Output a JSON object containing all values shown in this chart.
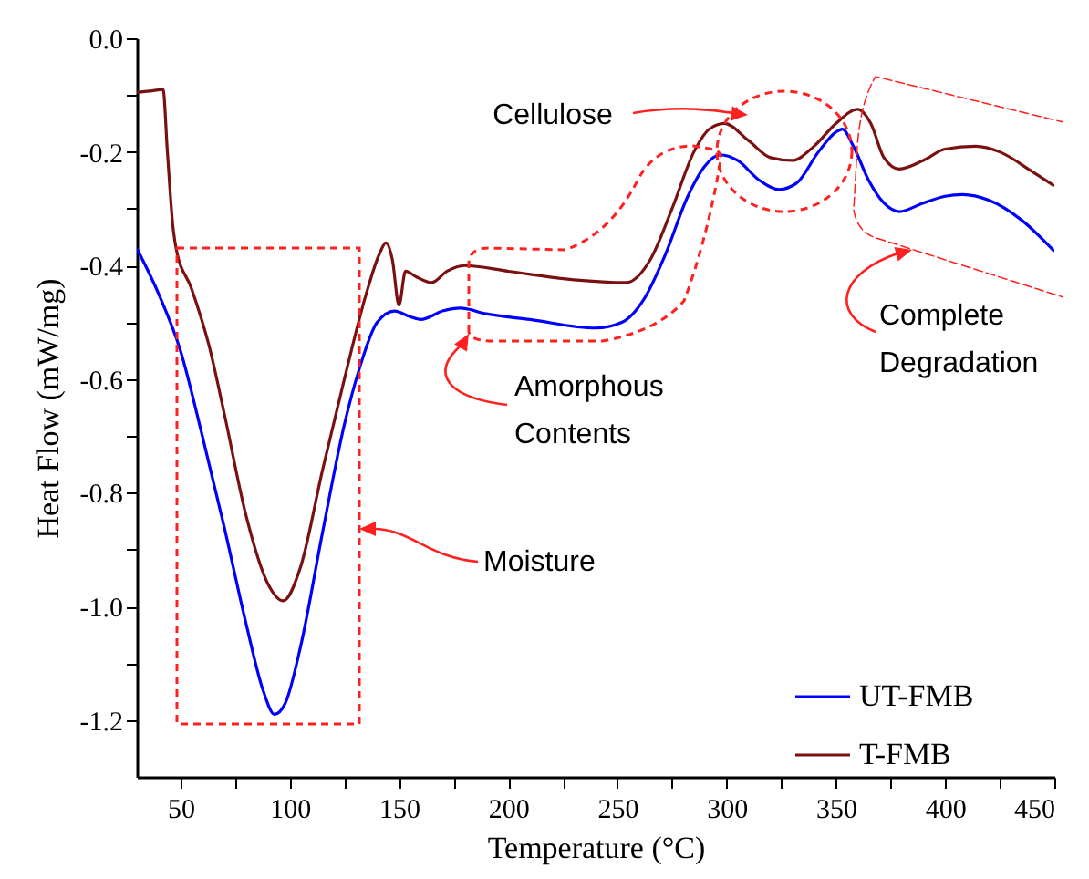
{
  "chart_data": {
    "type": "line",
    "xlabel": "Temperature (°C)",
    "ylabel": "Heat Flow (mW/mg)",
    "xlim": [
      30,
      450
    ],
    "ylim": [
      -1.3,
      0
    ],
    "xticks": [
      50,
      {
        "value": 75,
        "label": null
      },
      100,
      {
        "value": 125,
        "label": null
      },
      150,
      {
        "value": 175,
        "label": null
      },
      200,
      {
        "value": 225,
        "label": null
      },
      250,
      {
        "value": 275,
        "label": null
      },
      300,
      {
        "value": 325,
        "label": null
      },
      350,
      {
        "value": 375,
        "label": null
      },
      400,
      {
        "value": 425,
        "label": null
      },
      450
    ],
    "yticks": [
      {
        "value": -1.2,
        "label": "-1.2"
      },
      {
        "value": -1.1,
        "label": null
      },
      {
        "value": -1.0,
        "label": "-1.0"
      },
      {
        "value": -0.9,
        "label": null
      },
      -0.8,
      {
        "value": -0.7,
        "label": null
      },
      -0.6,
      {
        "value": -0.5,
        "label": null
      },
      -0.4,
      {
        "value": -0.3,
        "label": null
      },
      -0.2,
      {
        "value": -0.1,
        "label": null
      },
      {
        "value": 0,
        "label": "0.0"
      }
    ],
    "grid": false,
    "legend": "bottom right",
    "line_style": "solid",
    "annotations": [
      "Cellulose",
      "Amorphous\nContents",
      "Moisture",
      "Complete\nDegradation"
    ],
    "series": [
      {
        "name": "UT-FMB",
        "color": "#0000ff",
        "x": [
          30,
          40,
          50,
          60,
          70,
          80,
          88,
          93,
          98,
          105,
          115,
          125,
          132,
          140,
          148,
          155,
          160,
          170,
          178,
          190,
          210,
          240,
          252,
          262,
          272,
          282,
          290,
          297,
          305,
          315,
          324,
          332,
          342,
          350,
          353,
          358,
          365,
          372,
          379,
          390,
          400,
          408,
          420,
          435,
          450
        ],
        "values": [
          -0.37,
          -0.45,
          -0.55,
          -0.7,
          -0.86,
          -1.03,
          -1.15,
          -1.19,
          -1.17,
          -1.07,
          -0.87,
          -0.68,
          -0.58,
          -0.5,
          -0.48,
          -0.49,
          -0.495,
          -0.48,
          -0.475,
          -0.485,
          -0.495,
          -0.51,
          -0.5,
          -0.46,
          -0.38,
          -0.28,
          -0.225,
          -0.205,
          -0.215,
          -0.25,
          -0.266,
          -0.255,
          -0.2,
          -0.165,
          -0.16,
          -0.19,
          -0.25,
          -0.29,
          -0.305,
          -0.29,
          -0.278,
          -0.275,
          -0.285,
          -0.32,
          -0.375
        ]
      },
      {
        "name": "T-FMB",
        "color": "#7b1010",
        "x": [
          30,
          36,
          42,
          44,
          46.5,
          48,
          55,
          63,
          70,
          80,
          90,
          97,
          105,
          115,
          125,
          135,
          141,
          144,
          147,
          150,
          153,
          158,
          165,
          172,
          180,
          200,
          230,
          254,
          265,
          275,
          285,
          292,
          299,
          310,
          320,
          330,
          340,
          350,
          360,
          366,
          372,
          379,
          390,
          400,
          414,
          425,
          440,
          450
        ],
        "values": [
          -0.095,
          -0.093,
          -0.09,
          -0.2,
          -0.33,
          -0.37,
          -0.44,
          -0.54,
          -0.66,
          -0.84,
          -0.96,
          -0.99,
          -0.93,
          -0.76,
          -0.6,
          -0.45,
          -0.38,
          -0.36,
          -0.39,
          -0.47,
          -0.41,
          -0.42,
          -0.43,
          -0.41,
          -0.4,
          -0.41,
          -0.425,
          -0.43,
          -0.39,
          -0.3,
          -0.2,
          -0.16,
          -0.15,
          -0.18,
          -0.21,
          -0.215,
          -0.19,
          -0.15,
          -0.125,
          -0.15,
          -0.21,
          -0.23,
          -0.215,
          -0.195,
          -0.19,
          -0.2,
          -0.235,
          -0.26
        ]
      }
    ]
  }
}
